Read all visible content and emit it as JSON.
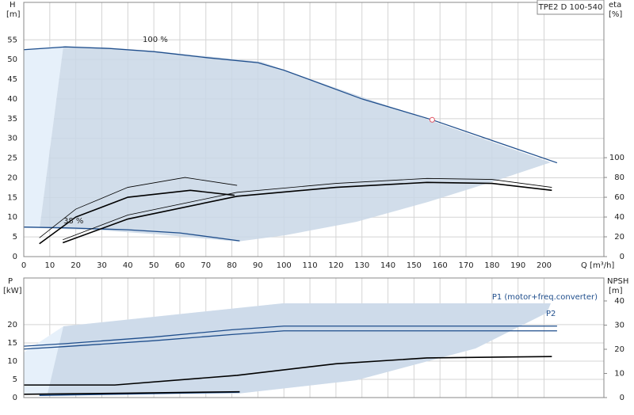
{
  "chart_data": [
    {
      "type": "line",
      "badge": "TPE2 D 100-540",
      "y_label": "H",
      "y_unit": "[m]",
      "y2_label": "eta",
      "y2_unit": "[%]",
      "x_label": "Q [m³/h]",
      "xlim": [
        0,
        223
      ],
      "xticks": [
        0,
        10,
        20,
        30,
        40,
        50,
        60,
        70,
        80,
        90,
        100,
        110,
        120,
        130,
        140,
        150,
        160,
        170,
        180,
        190,
        200
      ],
      "ylim": [
        0,
        64.5
      ],
      "yticks": [
        0,
        5,
        10,
        15,
        20,
        25,
        30,
        35,
        40,
        45,
        50,
        55
      ],
      "y2lim": [
        0,
        257
      ],
      "y2ticks": [
        0,
        20,
        40,
        60,
        80,
        100
      ],
      "grid": true,
      "annotations": [
        "100 %",
        "38 %"
      ],
      "marker": {
        "x": 157,
        "y": 34.7,
        "color": "#e05060"
      },
      "series": [
        {
          "name": "100 %",
          "color": "#1f4e8c",
          "x": [
            0,
            16,
            33,
            50,
            70,
            90,
            100,
            130,
            157,
            205
          ],
          "values": [
            52.5,
            53.2,
            52.8,
            52,
            50.5,
            49.2,
            47.3,
            40,
            34.7,
            23.8
          ]
        },
        {
          "name": "38 %",
          "color": "#1f4e8c",
          "x": [
            0,
            16,
            40,
            60,
            83
          ],
          "values": [
            7.5,
            7.3,
            6.8,
            6,
            4
          ]
        },
        {
          "color": "#000000",
          "width": 0.8,
          "axis": "y2",
          "x": [
            6,
            20,
            40,
            62,
            82
          ],
          "values": [
            19,
            48,
            70,
            80,
            72
          ]
        },
        {
          "color": "#000000",
          "width": 1.6,
          "axis": "y2",
          "x": [
            6,
            20,
            40,
            64,
            81
          ],
          "values": [
            13,
            40,
            60,
            67,
            62
          ]
        },
        {
          "color": "#000000",
          "width": 0.8,
          "axis": "y2",
          "x": [
            15,
            40,
            82,
            120,
            155,
            180,
            203
          ],
          "values": [
            17,
            42,
            65,
            74,
            79,
            78,
            70
          ]
        },
        {
          "color": "#000000",
          "width": 1.6,
          "axis": "y2",
          "x": [
            15,
            40,
            82,
            120,
            155,
            180,
            203
          ],
          "values": [
            14,
            38,
            61,
            70,
            75,
            74,
            67
          ]
        }
      ]
    },
    {
      "type": "line",
      "y_label": "P",
      "y_unit": "[kW]",
      "y2_label": "NPSH",
      "y2_unit": "[m]",
      "xlim": [
        0,
        223
      ],
      "xticks": [
        0,
        10,
        20,
        30,
        40,
        50,
        60,
        70,
        80,
        90,
        100,
        110,
        120,
        130,
        140,
        150,
        160,
        170,
        180,
        190,
        200
      ],
      "ylim": [
        0,
        32.8
      ],
      "yticks": [
        0,
        5,
        10,
        15,
        20
      ],
      "y2lim": [
        0,
        49.5
      ],
      "y2ticks": [
        0,
        10,
        20,
        30,
        40
      ],
      "grid": true,
      "annotations": [
        "P1 (motor+freq.converter)",
        "P2"
      ],
      "series": [
        {
          "name": "P1 (motor+freq.converter)",
          "color": "#1f4e8c",
          "x": [
            0,
            16,
            50,
            80,
            100,
            205
          ],
          "values": [
            14.1,
            14.8,
            16.6,
            18.6,
            19.6,
            19.6
          ]
        },
        {
          "name": "P2",
          "color": "#1f4e8c",
          "x": [
            0,
            16,
            50,
            80,
            100,
            205
          ],
          "values": [
            13.3,
            14,
            15.6,
            17.3,
            18.3,
            18.3
          ]
        },
        {
          "color": "#1f4e8c",
          "width": 1.6,
          "x": [
            6,
            40,
            83
          ],
          "values": [
            0.6,
            1,
            1.5
          ]
        },
        {
          "color": "#000000",
          "width": 1.6,
          "x": [
            0,
            40,
            60,
            83
          ],
          "values": [
            0.9,
            1.2,
            1.4,
            1.6
          ]
        },
        {
          "color": "#000000",
          "width": 1.6,
          "axis": "y2",
          "x": [
            0,
            35,
            82,
            120,
            155,
            203
          ],
          "values": [
            5.2,
            5.2,
            9.2,
            14,
            16.4,
            17
          ]
        }
      ]
    }
  ]
}
